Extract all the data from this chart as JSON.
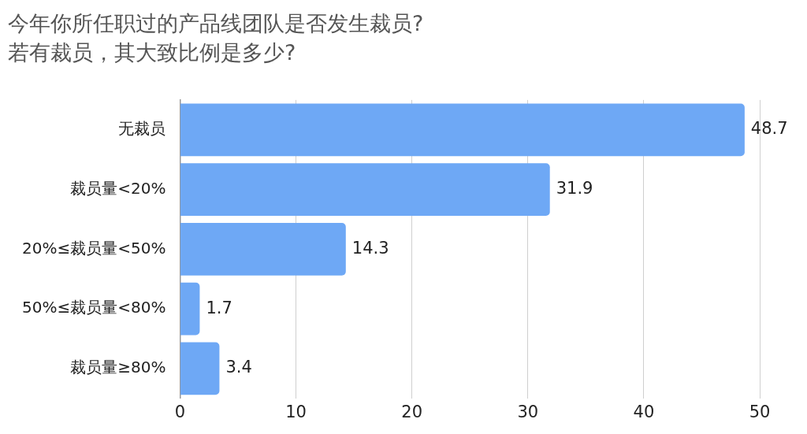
{
  "chart_data": {
    "type": "bar",
    "orientation": "horizontal",
    "title": "今年你所任职过的产品线团队是否发生裁员?\n若有裁员，其大致比例是多少?",
    "categories": [
      "无裁员",
      "裁员量<20%",
      "20%≤裁员量<50%",
      "50%≤裁员量<80%",
      "裁员量≥80%"
    ],
    "values": [
      48.7,
      31.9,
      14.3,
      1.7,
      3.4
    ],
    "color": "#6ea8f5",
    "xlim": [
      0,
      50
    ],
    "xticks": [
      0,
      10,
      20,
      30,
      40,
      50
    ],
    "grid": "x",
    "data_labels": true
  }
}
